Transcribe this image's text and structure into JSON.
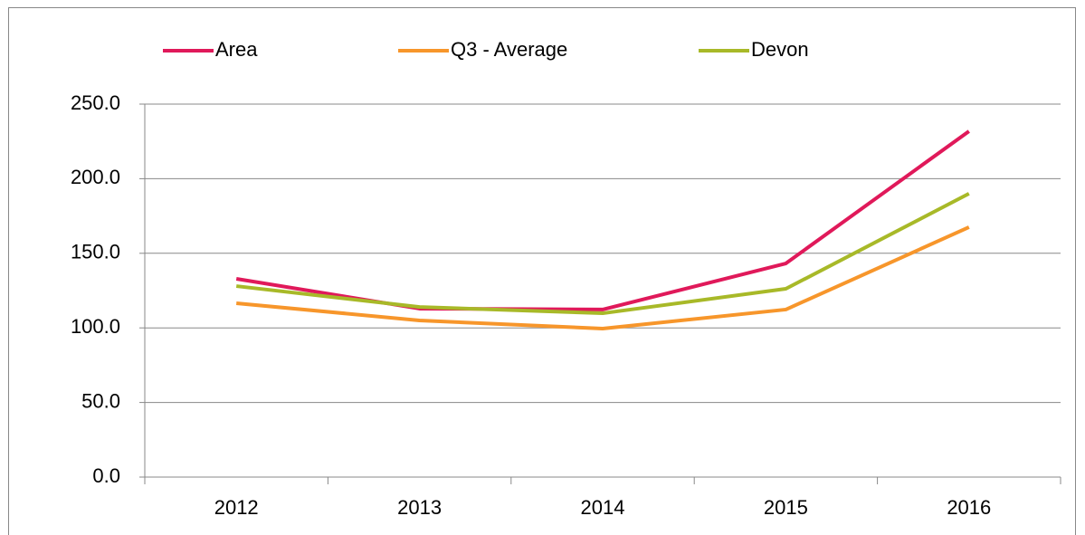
{
  "chart_data": {
    "type": "line",
    "categories": [
      "2012",
      "2013",
      "2014",
      "2015",
      "2016"
    ],
    "series": [
      {
        "name": "Area",
        "color": "#e0195a",
        "values": [
          132.9,
          112.9,
          112.3,
          143.2,
          231.8
        ]
      },
      {
        "name": "Q3 - Average",
        "color": "#f7962b",
        "values": [
          116.5,
          105.0,
          99.5,
          112.3,
          167.5
        ]
      },
      {
        "name": "Devon",
        "color": "#a8b928",
        "values": [
          128.0,
          114.0,
          109.8,
          126.2,
          190.0
        ]
      }
    ],
    "ylim": [
      0,
      250
    ],
    "yticks": [
      {
        "value": 0,
        "label": "0.0"
      },
      {
        "value": 50,
        "label": "50.0"
      },
      {
        "value": 100,
        "label": "100.0"
      },
      {
        "value": 150,
        "label": "150.0"
      },
      {
        "value": 200,
        "label": "200.0"
      },
      {
        "value": 250,
        "label": "250.0"
      }
    ],
    "grid": true,
    "legend": "top"
  }
}
